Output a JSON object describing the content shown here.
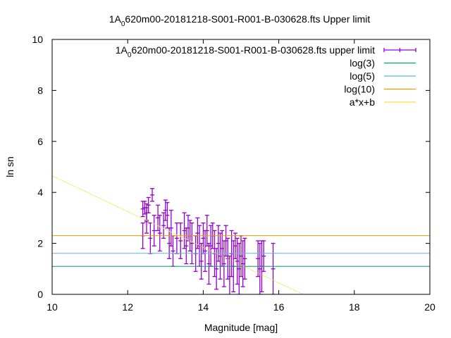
{
  "chart_data": {
    "type": "scatter",
    "title": {
      "prefix": "1A",
      "sub": "0",
      "rest": "620m00-20181218-S001-R001-B-030628.fts Upper limit"
    },
    "xlabel": "Magnitude [mag]",
    "ylabel": "ln sn",
    "xlim": [
      10,
      20
    ],
    "ylim": [
      0,
      10
    ],
    "xticks": [
      10,
      12,
      14,
      16,
      18,
      20
    ],
    "yticks": [
      0,
      2,
      4,
      6,
      8,
      10
    ],
    "grid": false,
    "legend_placement": "top-right",
    "series": [
      {
        "name": {
          "prefix": "1A",
          "sub": "0",
          "rest": "620m00-20181218-S001-R001-B-030628.fts upper limit"
        },
        "kind": "errorbars",
        "color": "#9400d3",
        "points": [
          [
            12.4,
            3.35,
            0.3
          ],
          [
            12.45,
            3.4,
            0.25
          ],
          [
            12.5,
            3.2,
            0.35
          ],
          [
            12.55,
            3.5,
            0.3
          ],
          [
            12.65,
            3.9,
            0.25
          ],
          [
            12.4,
            2.3,
            0.5
          ],
          [
            12.5,
            2.9,
            0.5
          ],
          [
            12.6,
            2.2,
            0.6
          ],
          [
            12.7,
            2.5,
            0.6
          ],
          [
            12.8,
            3.0,
            0.5
          ],
          [
            12.85,
            2.4,
            0.7
          ],
          [
            12.95,
            2.7,
            0.5
          ],
          [
            13.0,
            3.3,
            0.4
          ],
          [
            13.05,
            3.1,
            0.5
          ],
          [
            13.1,
            2.0,
            0.6
          ],
          [
            13.15,
            2.6,
            0.7
          ],
          [
            13.2,
            1.7,
            0.6
          ],
          [
            13.3,
            2.2,
            0.6
          ],
          [
            13.4,
            2.1,
            0.7
          ],
          [
            13.5,
            2.5,
            0.7
          ],
          [
            13.55,
            1.9,
            0.7
          ],
          [
            13.6,
            2.6,
            0.5
          ],
          [
            13.65,
            2.3,
            0.6
          ],
          [
            13.7,
            2.0,
            0.8
          ],
          [
            13.8,
            1.6,
            0.7
          ],
          [
            13.85,
            2.4,
            0.6
          ],
          [
            13.9,
            1.9,
            0.8
          ],
          [
            13.95,
            1.3,
            0.7
          ],
          [
            14.0,
            2.2,
            0.6
          ],
          [
            14.05,
            1.7,
            0.8
          ],
          [
            14.1,
            2.5,
            0.6
          ],
          [
            14.15,
            1.2,
            0.8
          ],
          [
            14.2,
            1.9,
            0.8
          ],
          [
            14.25,
            2.3,
            0.5
          ],
          [
            14.3,
            1.6,
            0.9
          ],
          [
            14.35,
            1.0,
            0.8
          ],
          [
            14.4,
            2.0,
            0.7
          ],
          [
            14.45,
            1.5,
            0.9
          ],
          [
            14.5,
            1.8,
            0.7
          ],
          [
            14.55,
            1.2,
            0.9
          ],
          [
            14.6,
            2.1,
            0.6
          ],
          [
            14.65,
            1.4,
            0.8
          ],
          [
            14.7,
            0.7,
            0.8
          ],
          [
            14.75,
            1.6,
            0.9
          ],
          [
            14.8,
            1.1,
            1.0
          ],
          [
            14.85,
            1.9,
            0.5
          ],
          [
            14.9,
            1.3,
            0.9
          ],
          [
            14.95,
            1.0,
            1.0
          ],
          [
            15.0,
            1.5,
            0.8
          ],
          [
            15.05,
            1.2,
            0.9
          ],
          [
            15.1,
            1.4,
            0.8
          ],
          [
            15.45,
            1.4,
            0.7
          ],
          [
            15.5,
            1.0,
            1.0
          ],
          [
            15.55,
            1.1,
            1.0
          ],
          [
            15.6,
            1.5,
            0.6
          ],
          [
            15.85,
            1.0,
            1.0
          ]
        ]
      },
      {
        "name": "log(3)",
        "kind": "hline",
        "value": 1.0986,
        "color": "#009e73"
      },
      {
        "name": "log(5)",
        "kind": "hline",
        "value": 1.6094,
        "color": "#56b4e9"
      },
      {
        "name": "log(10)",
        "kind": "hline",
        "value": 2.3026,
        "color": "#e69f00"
      },
      {
        "name": "a*x+b",
        "kind": "fitline",
        "a": -0.7,
        "b": 11.65,
        "color": "#f0e442"
      }
    ]
  }
}
